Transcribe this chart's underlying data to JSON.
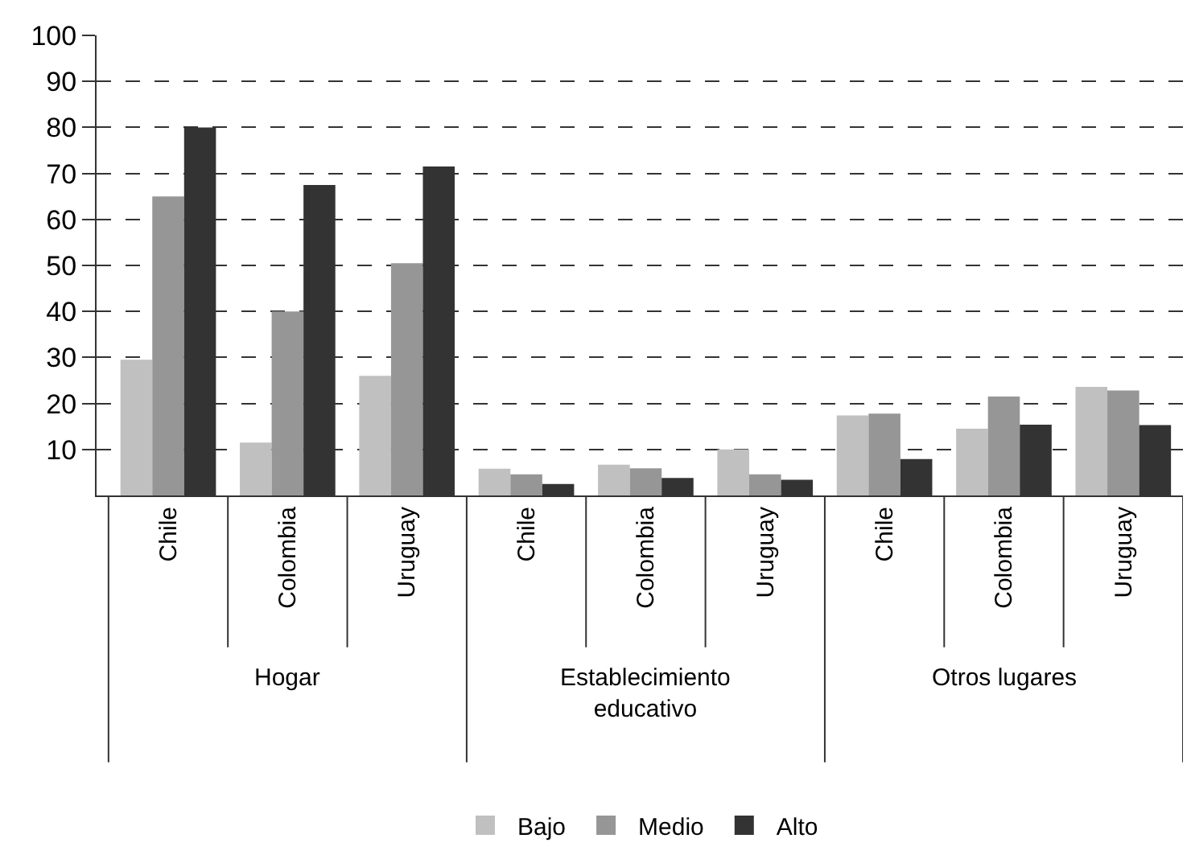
{
  "chart_data": {
    "type": "bar",
    "categories": [
      "Chile",
      "Colombia",
      "Uruguay",
      "Chile",
      "Colombia",
      "Uruguay",
      "Chile",
      "Colombia",
      "Uruguay"
    ],
    "series": [
      {
        "name": "Bajo",
        "color": "#c0c0c0",
        "values": [
          29.5,
          11.5,
          26,
          5.8,
          6.7,
          10,
          17.4,
          14.5,
          23.6
        ]
      },
      {
        "name": "Medio",
        "color": "#969696",
        "values": [
          65,
          40,
          50.5,
          4.6,
          5.9,
          4.6,
          17.8,
          21.5,
          22.8
        ]
      },
      {
        "name": "Alto",
        "color": "#333333",
        "values": [
          80,
          67.5,
          71.5,
          2.5,
          3.8,
          3.4,
          7.9,
          15.4,
          15.3
        ]
      }
    ],
    "annotations": [
      "Hogar",
      "Establecimiento educativo",
      "Otros lugares"
    ],
    "ylim": [
      0,
      100
    ],
    "yticks": [
      10,
      20,
      30,
      40,
      50,
      60,
      70,
      80,
      90,
      100
    ],
    "grid": "y",
    "legend": "bottom"
  }
}
